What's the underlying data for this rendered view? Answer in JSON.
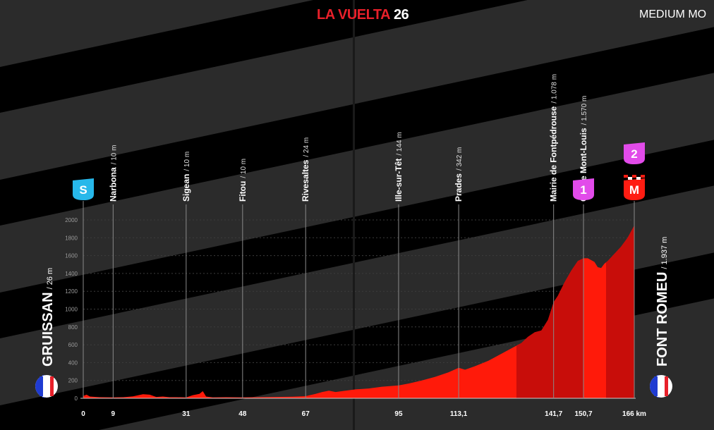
{
  "header": {
    "brand": "LA VUELTA",
    "year": "26",
    "difficulty": "MEDIUM MO"
  },
  "colors": {
    "profile_light": "#ff1a0a",
    "profile_dark": "#c80d0a",
    "sprint_badge": "#27b8ea",
    "climb_badge": "#e24bea",
    "finish_badge": "#ff1c12",
    "brand_red": "#e8202a"
  },
  "chart_data": {
    "type": "area",
    "title": "",
    "xlabel": "",
    "ylabel": "",
    "unit_distance": "km",
    "xlim": [
      0,
      166
    ],
    "ylim": [
      0,
      2000
    ],
    "y_ticks": [
      0,
      200,
      400,
      600,
      800,
      1000,
      1200,
      1400,
      1600,
      1800,
      2000
    ],
    "x_ticks": [
      {
        "value": 0,
        "label": "0"
      },
      {
        "value": 9,
        "label": "9"
      },
      {
        "value": 31,
        "label": "31"
      },
      {
        "value": 48,
        "label": "48"
      },
      {
        "value": 67,
        "label": "67"
      },
      {
        "value": 95,
        "label": "95"
      },
      {
        "value": 113.1,
        "label": "113,1"
      },
      {
        "value": 141.7,
        "label": "141,7"
      },
      {
        "value": 150.7,
        "label": "150,7"
      },
      {
        "value": 166,
        "label": "166 km"
      }
    ],
    "start": {
      "name": "GRUISSAN",
      "alt_label": "/ 26 m",
      "flag": "france-flag"
    },
    "finish": {
      "name": "FONT ROMEU",
      "alt_label": "/ 1.937 m",
      "flag": "france-flag"
    },
    "waypoints": [
      {
        "km": 9,
        "name": "Narbona",
        "alt_label": "/ 10 m"
      },
      {
        "km": 31,
        "name": "Sigean",
        "alt_label": "/ 10 m"
      },
      {
        "km": 48,
        "name": "Fitou",
        "alt_label": "/ 10 m"
      },
      {
        "km": 67,
        "name": "Rivesaltes",
        "alt_label": "/ 24 m"
      },
      {
        "km": 95,
        "name": "Ille-sur-Têt",
        "alt_label": "/ 144 m"
      },
      {
        "km": 113.1,
        "name": "Prades",
        "alt_label": "/ 342 m"
      },
      {
        "km": 141.7,
        "name": "Mairie de Fontpédrouse",
        "alt_label": "/ 1.078 m"
      },
      {
        "km": 150.7,
        "name": "Col de Mont-Louis",
        "alt_label": "/ 1.570 m"
      }
    ],
    "badges": [
      {
        "km": 0,
        "label": "S",
        "kind": "sprint"
      },
      {
        "km": 150.7,
        "label": "1",
        "kind": "climb"
      },
      {
        "km": 166,
        "label": "M",
        "kind": "finish"
      },
      {
        "km": 166,
        "label": "2",
        "kind": "climb"
      }
    ],
    "dark_segments": [
      [
        130.5,
        150.7
      ],
      [
        157.5,
        166
      ]
    ],
    "profile": [
      [
        0,
        26
      ],
      [
        1,
        40
      ],
      [
        2,
        20
      ],
      [
        5,
        12
      ],
      [
        9,
        10
      ],
      [
        12,
        12
      ],
      [
        15,
        22
      ],
      [
        18,
        45
      ],
      [
        20,
        40
      ],
      [
        22,
        15
      ],
      [
        24,
        20
      ],
      [
        26,
        12
      ],
      [
        28,
        12
      ],
      [
        31,
        10
      ],
      [
        33,
        35
      ],
      [
        35,
        50
      ],
      [
        36,
        80
      ],
      [
        37,
        20
      ],
      [
        39,
        10
      ],
      [
        43,
        12
      ],
      [
        48,
        10
      ],
      [
        52,
        12
      ],
      [
        58,
        15
      ],
      [
        63,
        18
      ],
      [
        67,
        24
      ],
      [
        70,
        50
      ],
      [
        72,
        70
      ],
      [
        74,
        85
      ],
      [
        76,
        70
      ],
      [
        78,
        80
      ],
      [
        82,
        100
      ],
      [
        86,
        110
      ],
      [
        90,
        130
      ],
      [
        95,
        144
      ],
      [
        98,
        165
      ],
      [
        102,
        200
      ],
      [
        106,
        240
      ],
      [
        110,
        290
      ],
      [
        113.1,
        342
      ],
      [
        115,
        320
      ],
      [
        118,
        360
      ],
      [
        122,
        420
      ],
      [
        126,
        500
      ],
      [
        130,
        580
      ],
      [
        132,
        620
      ],
      [
        134,
        690
      ],
      [
        136,
        740
      ],
      [
        138,
        760
      ],
      [
        140,
        880
      ],
      [
        141.7,
        1078
      ],
      [
        143,
        1150
      ],
      [
        145,
        1300
      ],
      [
        147,
        1430
      ],
      [
        149,
        1540
      ],
      [
        150.7,
        1570
      ],
      [
        152,
        1570
      ],
      [
        154,
        1530
      ],
      [
        155,
        1470
      ],
      [
        156,
        1460
      ],
      [
        157,
        1510
      ],
      [
        158,
        1540
      ],
      [
        160,
        1620
      ],
      [
        162,
        1700
      ],
      [
        164,
        1800
      ],
      [
        166,
        1937
      ]
    ]
  }
}
